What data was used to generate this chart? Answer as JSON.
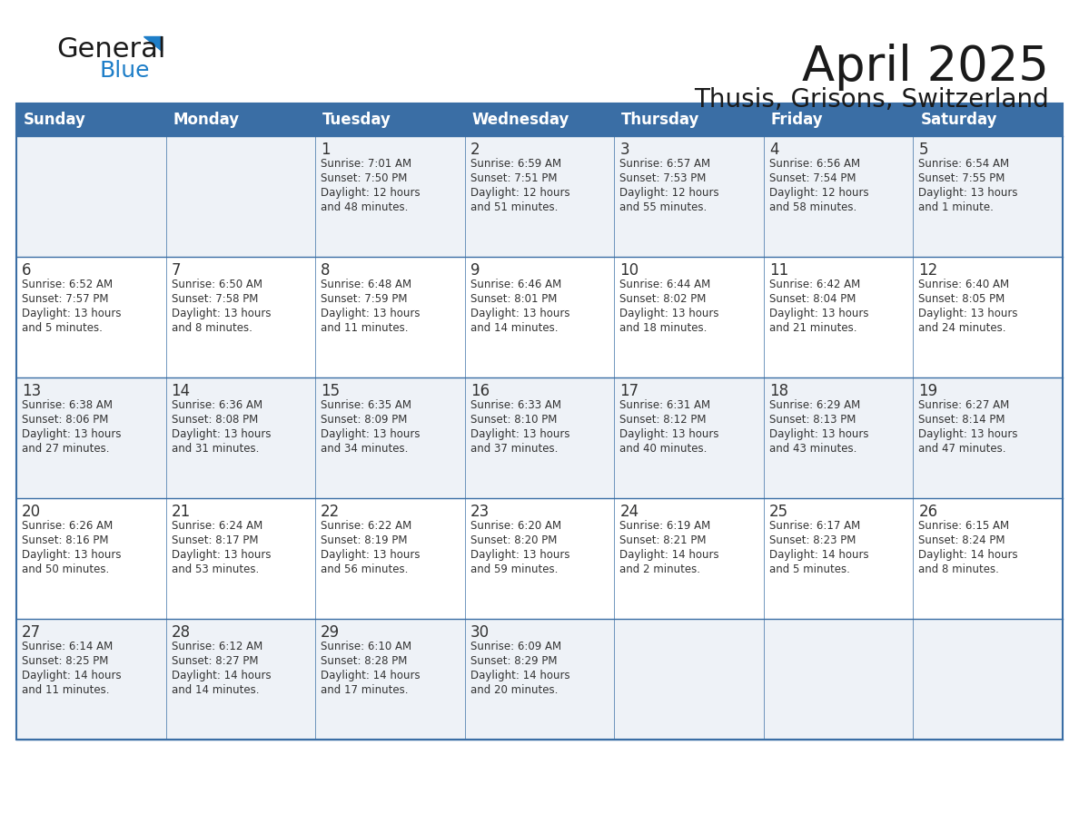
{
  "title": "April 2025",
  "subtitle": "Thusis, Grisons, Switzerland",
  "header_bg": "#3a6ea5",
  "header_text_color": "#ffffff",
  "weekdays": [
    "Sunday",
    "Monday",
    "Tuesday",
    "Wednesday",
    "Thursday",
    "Friday",
    "Saturday"
  ],
  "row_bg_even": "#eef2f7",
  "row_bg_odd": "#ffffff",
  "cell_border_color": "#3a6ea5",
  "day_number_color": "#333333",
  "info_text_color": "#333333",
  "calendar": [
    [
      {
        "day": "",
        "info": ""
      },
      {
        "day": "",
        "info": ""
      },
      {
        "day": "1",
        "info": "Sunrise: 7:01 AM\nSunset: 7:50 PM\nDaylight: 12 hours\nand 48 minutes."
      },
      {
        "day": "2",
        "info": "Sunrise: 6:59 AM\nSunset: 7:51 PM\nDaylight: 12 hours\nand 51 minutes."
      },
      {
        "day": "3",
        "info": "Sunrise: 6:57 AM\nSunset: 7:53 PM\nDaylight: 12 hours\nand 55 minutes."
      },
      {
        "day": "4",
        "info": "Sunrise: 6:56 AM\nSunset: 7:54 PM\nDaylight: 12 hours\nand 58 minutes."
      },
      {
        "day": "5",
        "info": "Sunrise: 6:54 AM\nSunset: 7:55 PM\nDaylight: 13 hours\nand 1 minute."
      }
    ],
    [
      {
        "day": "6",
        "info": "Sunrise: 6:52 AM\nSunset: 7:57 PM\nDaylight: 13 hours\nand 5 minutes."
      },
      {
        "day": "7",
        "info": "Sunrise: 6:50 AM\nSunset: 7:58 PM\nDaylight: 13 hours\nand 8 minutes."
      },
      {
        "day": "8",
        "info": "Sunrise: 6:48 AM\nSunset: 7:59 PM\nDaylight: 13 hours\nand 11 minutes."
      },
      {
        "day": "9",
        "info": "Sunrise: 6:46 AM\nSunset: 8:01 PM\nDaylight: 13 hours\nand 14 minutes."
      },
      {
        "day": "10",
        "info": "Sunrise: 6:44 AM\nSunset: 8:02 PM\nDaylight: 13 hours\nand 18 minutes."
      },
      {
        "day": "11",
        "info": "Sunrise: 6:42 AM\nSunset: 8:04 PM\nDaylight: 13 hours\nand 21 minutes."
      },
      {
        "day": "12",
        "info": "Sunrise: 6:40 AM\nSunset: 8:05 PM\nDaylight: 13 hours\nand 24 minutes."
      }
    ],
    [
      {
        "day": "13",
        "info": "Sunrise: 6:38 AM\nSunset: 8:06 PM\nDaylight: 13 hours\nand 27 minutes."
      },
      {
        "day": "14",
        "info": "Sunrise: 6:36 AM\nSunset: 8:08 PM\nDaylight: 13 hours\nand 31 minutes."
      },
      {
        "day": "15",
        "info": "Sunrise: 6:35 AM\nSunset: 8:09 PM\nDaylight: 13 hours\nand 34 minutes."
      },
      {
        "day": "16",
        "info": "Sunrise: 6:33 AM\nSunset: 8:10 PM\nDaylight: 13 hours\nand 37 minutes."
      },
      {
        "day": "17",
        "info": "Sunrise: 6:31 AM\nSunset: 8:12 PM\nDaylight: 13 hours\nand 40 minutes."
      },
      {
        "day": "18",
        "info": "Sunrise: 6:29 AM\nSunset: 8:13 PM\nDaylight: 13 hours\nand 43 minutes."
      },
      {
        "day": "19",
        "info": "Sunrise: 6:27 AM\nSunset: 8:14 PM\nDaylight: 13 hours\nand 47 minutes."
      }
    ],
    [
      {
        "day": "20",
        "info": "Sunrise: 6:26 AM\nSunset: 8:16 PM\nDaylight: 13 hours\nand 50 minutes."
      },
      {
        "day": "21",
        "info": "Sunrise: 6:24 AM\nSunset: 8:17 PM\nDaylight: 13 hours\nand 53 minutes."
      },
      {
        "day": "22",
        "info": "Sunrise: 6:22 AM\nSunset: 8:19 PM\nDaylight: 13 hours\nand 56 minutes."
      },
      {
        "day": "23",
        "info": "Sunrise: 6:20 AM\nSunset: 8:20 PM\nDaylight: 13 hours\nand 59 minutes."
      },
      {
        "day": "24",
        "info": "Sunrise: 6:19 AM\nSunset: 8:21 PM\nDaylight: 14 hours\nand 2 minutes."
      },
      {
        "day": "25",
        "info": "Sunrise: 6:17 AM\nSunset: 8:23 PM\nDaylight: 14 hours\nand 5 minutes."
      },
      {
        "day": "26",
        "info": "Sunrise: 6:15 AM\nSunset: 8:24 PM\nDaylight: 14 hours\nand 8 minutes."
      }
    ],
    [
      {
        "day": "27",
        "info": "Sunrise: 6:14 AM\nSunset: 8:25 PM\nDaylight: 14 hours\nand 11 minutes."
      },
      {
        "day": "28",
        "info": "Sunrise: 6:12 AM\nSunset: 8:27 PM\nDaylight: 14 hours\nand 14 minutes."
      },
      {
        "day": "29",
        "info": "Sunrise: 6:10 AM\nSunset: 8:28 PM\nDaylight: 14 hours\nand 17 minutes."
      },
      {
        "day": "30",
        "info": "Sunrise: 6:09 AM\nSunset: 8:29 PM\nDaylight: 14 hours\nand 20 minutes."
      },
      {
        "day": "",
        "info": ""
      },
      {
        "day": "",
        "info": ""
      },
      {
        "day": "",
        "info": ""
      }
    ]
  ]
}
